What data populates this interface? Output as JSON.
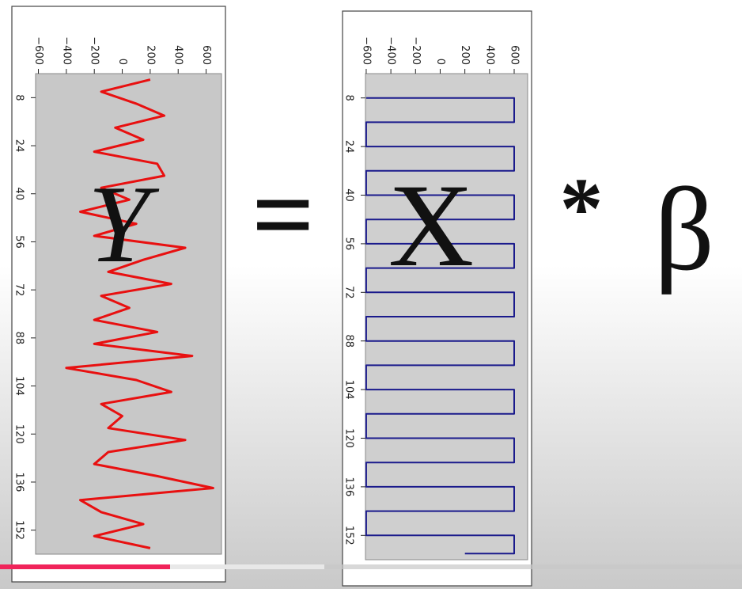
{
  "chart_data": [
    {
      "type": "line",
      "orientation": "vertical",
      "x": [
        2,
        6,
        10,
        14,
        18,
        22,
        26,
        30,
        34,
        38,
        42,
        46,
        50,
        54,
        58,
        62,
        66,
        70,
        74,
        78,
        82,
        86,
        90,
        94,
        98,
        102,
        106,
        110,
        114,
        118,
        122,
        126,
        130,
        134,
        138,
        142,
        146,
        150,
        154,
        158
      ],
      "series": [
        {
          "color": "#e81010",
          "values": [
            200,
            -150,
            100,
            300,
            -50,
            150,
            -200,
            250,
            300,
            -150,
            50,
            -300,
            100,
            -200,
            450,
            150,
            -100,
            350,
            -150,
            50,
            -200,
            250,
            -200,
            500,
            -400,
            100,
            350,
            -150,
            0,
            -100,
            450,
            -100,
            -200,
            250,
            650,
            -300,
            -150,
            150,
            -200,
            200
          ]
        }
      ],
      "xlim": [
        0,
        160
      ],
      "xticks": [
        8,
        24,
        40,
        56,
        72,
        88,
        104,
        120,
        136,
        152
      ],
      "ylim": [
        -620,
        710
      ],
      "yticks": [
        {
          "value": -600,
          "label": "−600"
        },
        {
          "value": -400,
          "label": "−400"
        },
        {
          "value": -200,
          "label": "−200"
        },
        0,
        200,
        400,
        600
      ]
    },
    {
      "type": "line",
      "orientation": "vertical",
      "x": [
        8,
        8,
        16,
        16,
        24,
        24,
        32,
        32,
        40,
        40,
        48,
        48,
        56,
        56,
        64,
        64,
        72,
        72,
        80,
        80,
        88,
        88,
        96,
        96,
        104,
        104,
        112,
        112,
        120,
        120,
        128,
        128,
        136,
        136,
        144,
        144,
        152,
        152,
        158,
        158
      ],
      "series": [
        {
          "color": "#1a1a8c",
          "values": [
            -600,
            600,
            600,
            -600,
            -600,
            600,
            600,
            -600,
            -600,
            600,
            600,
            -600,
            -600,
            600,
            600,
            -600,
            -600,
            600,
            600,
            -600,
            -600,
            600,
            600,
            -600,
            -600,
            600,
            600,
            -600,
            -600,
            600,
            600,
            -600,
            -600,
            600,
            600,
            -600,
            -600,
            600,
            600,
            200
          ]
        }
      ],
      "xlim": [
        0,
        160
      ],
      "xticks": [
        8,
        24,
        40,
        56,
        72,
        88,
        104,
        120,
        136,
        152
      ],
      "ylim": [
        -606,
        709
      ],
      "yticks": [
        {
          "value": -600,
          "label": "−600"
        },
        {
          "value": -400,
          "label": "−400"
        },
        {
          "value": -200,
          "label": "−200"
        },
        0,
        200,
        400,
        600
      ]
    }
  ],
  "equation": {
    "lhs": "Y",
    "equals": "=",
    "rhs": "X",
    "operator": "*",
    "coefficient": "β"
  }
}
